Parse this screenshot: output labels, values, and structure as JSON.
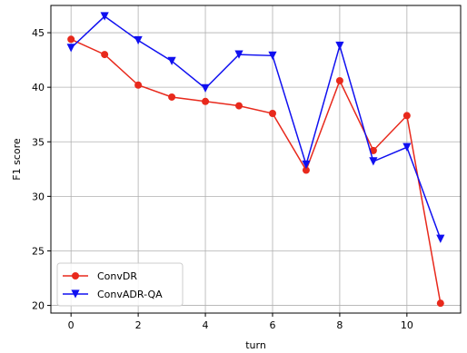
{
  "chart_data": {
    "type": "line",
    "title": "",
    "xlabel": "turn",
    "ylabel": "F1 score",
    "x": [
      0,
      1,
      2,
      3,
      4,
      5,
      6,
      7,
      8,
      9,
      10,
      11
    ],
    "xlim": [
      -0.6,
      11.6
    ],
    "ylim": [
      19.3,
      47.5
    ],
    "xticks": [
      0,
      2,
      4,
      6,
      8,
      10
    ],
    "yticks": [
      20,
      25,
      30,
      35,
      40,
      45
    ],
    "grid": true,
    "legend_position": "lower-left",
    "series": [
      {
        "name": "ConvDR",
        "color": "#e8291c",
        "marker": "circle",
        "values": [
          44.4,
          43.0,
          40.2,
          39.1,
          38.7,
          38.3,
          37.6,
          32.4,
          40.6,
          34.2,
          37.4,
          20.2
        ]
      },
      {
        "name": "ConvADR-QA",
        "color": "#1010f0",
        "marker": "triangle-down",
        "values": [
          43.6,
          46.5,
          44.3,
          42.4,
          39.9,
          43.0,
          42.9,
          32.9,
          43.8,
          33.2,
          34.5,
          26.1
        ]
      }
    ]
  }
}
